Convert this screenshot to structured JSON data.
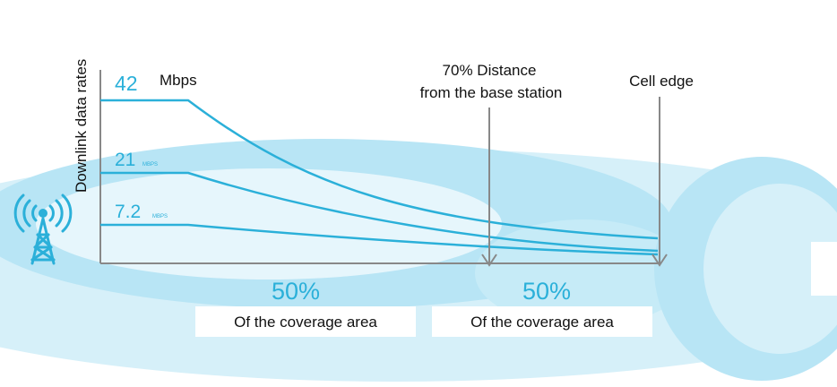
{
  "axis": {
    "ylabel": "Downlink data rates"
  },
  "rates": [
    {
      "value": "42",
      "unit": "Mbps"
    },
    {
      "value": "21",
      "unit": "MBPS"
    },
    {
      "value": "7.2",
      "unit": "MBPS"
    }
  ],
  "markers": {
    "distance_label_line1": "70% Distance",
    "distance_label_line2": "from the base station",
    "cell_edge_label": "Cell edge"
  },
  "coverage": [
    {
      "percent": "50%",
      "caption": "Of the coverage area"
    },
    {
      "percent": "50%",
      "caption": "Of the coverage area"
    }
  ],
  "colors": {
    "curve": "#2bb0d9",
    "band": "#d6f0f9",
    "band_dark": "#b8e5f5",
    "axis": "#888888",
    "text": "#111111"
  },
  "icons": {
    "tower": "cell-tower-icon"
  }
}
